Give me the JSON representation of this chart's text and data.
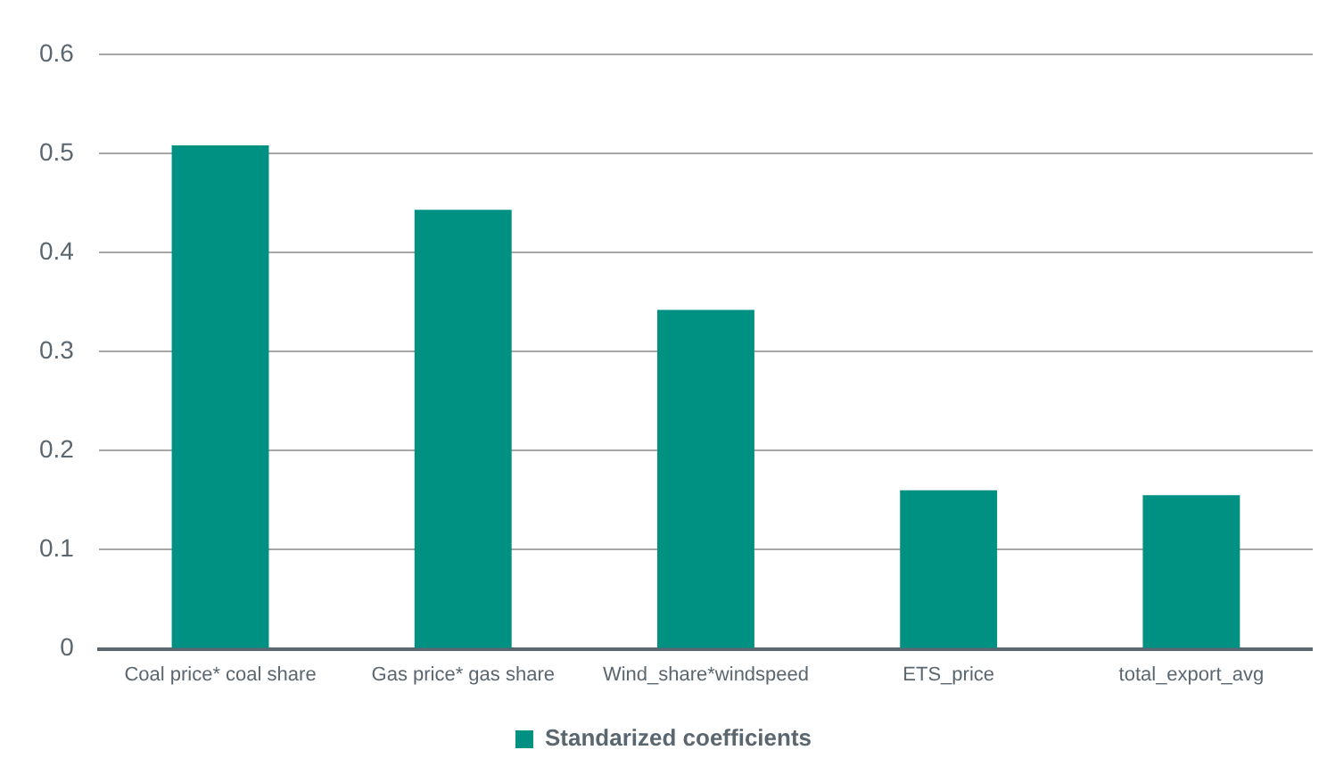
{
  "chart_data": {
    "type": "bar",
    "categories": [
      "Coal price* coal share",
      "Gas price* gas share",
      "Wind_share*windspeed",
      "ETS_price",
      "total_export_avg"
    ],
    "series": [
      {
        "name": "Standarized coefficients",
        "color": "#009183",
        "values": [
          0.508,
          0.443,
          0.342,
          0.16,
          0.155
        ]
      }
    ],
    "ylim": [
      0,
      0.6
    ],
    "yticks": [
      0,
      0.1,
      0.2,
      0.3,
      0.4,
      0.5,
      0.6
    ],
    "grid": "y",
    "legend": "bottom"
  }
}
